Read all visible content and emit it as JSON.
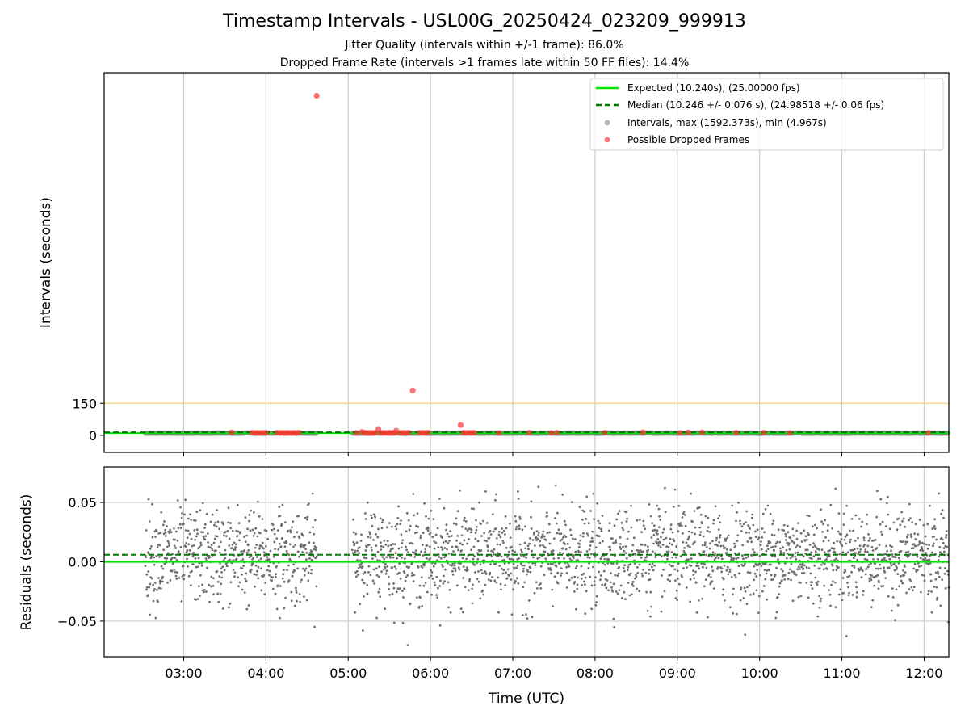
{
  "titles": {
    "main": "Timestamp Intervals - USL00G_20250424_023209_999913",
    "subtitle_1": "Jitter Quality (intervals within +/-1 frame): 86.0%",
    "subtitle_2": "Dropped Frame Rate (intervals >1 frames late within 50 FF files): 14.4%"
  },
  "colors": {
    "expected": "#00e600",
    "median": "#007700",
    "intervals": "#808080",
    "dropped": "#ff3333",
    "threshold": "#f5d078",
    "grid": "#cccccc"
  },
  "chart_data": [
    {
      "type": "scatter",
      "ylabel": "Intervals (seconds)",
      "xlabel": "",
      "x_ticks": [
        "03:00",
        "04:00",
        "05:00",
        "06:00",
        "07:00",
        "08:00",
        "09:00",
        "10:00",
        "11:00",
        "12:00"
      ],
      "y_ticks": [
        0,
        150
      ],
      "xlim": [
        "02:02",
        "12:18"
      ],
      "ylim": [
        -80,
        1700
      ],
      "threshold_line": 150,
      "expected": 10.24,
      "median": 10.246,
      "legend_position": "upper right",
      "legend": [
        {
          "label": "Expected (10.240s), (25.00000 fps)",
          "style": "solid-line"
        },
        {
          "label": "Median (10.246 +/- 0.076 s), (24.98518 +/- 0.06 fps)",
          "style": "dashed-line"
        },
        {
          "label": "Intervals, max (1592.373s), min (4.967s)",
          "style": "gray-dot"
        },
        {
          "label": "Possible Dropped Frames",
          "style": "red-dot"
        }
      ],
      "interval_segments": [
        [
          "02:32",
          "04:37"
        ],
        [
          "05:03",
          "12:18"
        ]
      ],
      "dropped_frames": [
        {
          "t": "04:37",
          "v": 1592
        },
        {
          "t": "05:47",
          "v": 210
        },
        {
          "t": "06:22",
          "v": 48
        },
        {
          "t": "05:22",
          "v": 30
        },
        {
          "t": "05:35",
          "v": 22
        },
        {
          "t": "05:10",
          "v": 16
        },
        {
          "t": "03:35",
          "v": 13
        },
        {
          "t": "03:50",
          "v": 12
        },
        {
          "t": "03:52",
          "v": 11
        },
        {
          "t": "03:54",
          "v": 12
        },
        {
          "t": "03:56",
          "v": 11
        },
        {
          "t": "03:58",
          "v": 12
        },
        {
          "t": "04:00",
          "v": 11
        },
        {
          "t": "04:08",
          "v": 12
        },
        {
          "t": "04:10",
          "v": 11
        },
        {
          "t": "04:12",
          "v": 12
        },
        {
          "t": "04:14",
          "v": 11
        },
        {
          "t": "04:16",
          "v": 12
        },
        {
          "t": "04:18",
          "v": 11
        },
        {
          "t": "04:20",
          "v": 12
        },
        {
          "t": "04:22",
          "v": 11
        },
        {
          "t": "04:24",
          "v": 12
        },
        {
          "t": "05:06",
          "v": 11
        },
        {
          "t": "05:12",
          "v": 12
        },
        {
          "t": "05:14",
          "v": 11
        },
        {
          "t": "05:16",
          "v": 12
        },
        {
          "t": "05:18",
          "v": 11
        },
        {
          "t": "05:20",
          "v": 12
        },
        {
          "t": "05:24",
          "v": 11
        },
        {
          "t": "05:26",
          "v": 12
        },
        {
          "t": "05:28",
          "v": 11
        },
        {
          "t": "05:30",
          "v": 12
        },
        {
          "t": "05:32",
          "v": 11
        },
        {
          "t": "05:34",
          "v": 12
        },
        {
          "t": "05:38",
          "v": 11
        },
        {
          "t": "05:40",
          "v": 12
        },
        {
          "t": "05:42",
          "v": 11
        },
        {
          "t": "05:44",
          "v": 12
        },
        {
          "t": "05:52",
          "v": 11
        },
        {
          "t": "05:54",
          "v": 12
        },
        {
          "t": "05:56",
          "v": 11
        },
        {
          "t": "05:58",
          "v": 12
        },
        {
          "t": "06:24",
          "v": 12
        },
        {
          "t": "06:26",
          "v": 11
        },
        {
          "t": "06:28",
          "v": 12
        },
        {
          "t": "06:30",
          "v": 11
        },
        {
          "t": "06:32",
          "v": 12
        },
        {
          "t": "06:50",
          "v": 11
        },
        {
          "t": "07:12",
          "v": 12
        },
        {
          "t": "07:28",
          "v": 11
        },
        {
          "t": "07:32",
          "v": 12
        },
        {
          "t": "08:07",
          "v": 12
        },
        {
          "t": "08:35",
          "v": 14
        },
        {
          "t": "09:02",
          "v": 11
        },
        {
          "t": "09:08",
          "v": 13
        },
        {
          "t": "09:18",
          "v": 13
        },
        {
          "t": "09:43",
          "v": 12
        },
        {
          "t": "10:03",
          "v": 12
        },
        {
          "t": "10:22",
          "v": 11
        },
        {
          "t": "12:03",
          "v": 11
        }
      ]
    },
    {
      "type": "scatter",
      "ylabel": "Residuals (seconds)",
      "xlabel": "Time (UTC)",
      "x_ticks": [
        "03:00",
        "04:00",
        "05:00",
        "06:00",
        "07:00",
        "08:00",
        "09:00",
        "10:00",
        "11:00",
        "12:00"
      ],
      "y_ticks": [
        "0.05",
        "0.00",
        "−0.05"
      ],
      "y_tick_values": [
        0.05,
        0.0,
        -0.05
      ],
      "xlim": [
        "02:02",
        "12:18"
      ],
      "ylim": [
        -0.08,
        0.08
      ],
      "expected_residual": 0.0,
      "median_residual": 0.006,
      "residual_distribution": {
        "mean": 0.005,
        "spread": 0.02,
        "min": -0.08,
        "max": 0.08
      },
      "data_segments": [
        [
          "02:32",
          "04:37"
        ],
        [
          "05:03",
          "12:18"
        ]
      ]
    }
  ]
}
